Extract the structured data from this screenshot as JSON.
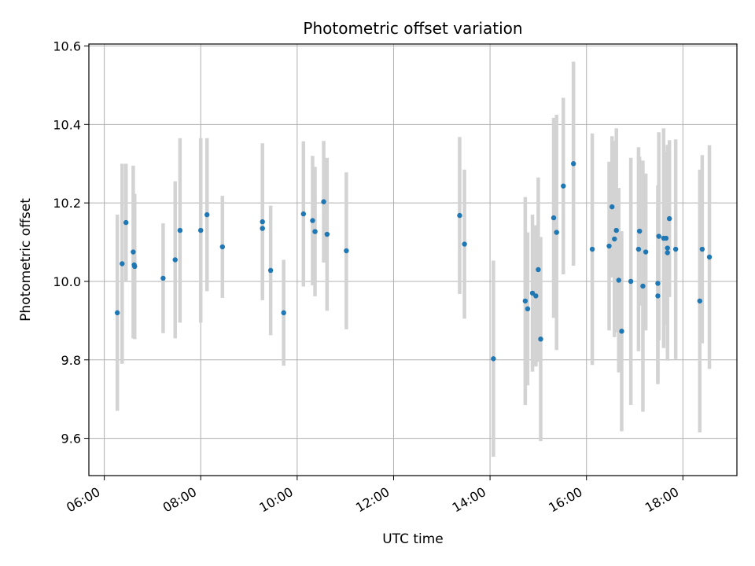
{
  "chart_data": {
    "type": "scatter",
    "title": "Photometric offset variation",
    "xlabel": "UTC time",
    "ylabel": "Photometric offset",
    "x_unit": "hours UTC",
    "xlim": [
      5.68,
      19.12
    ],
    "ylim": [
      9.505,
      10.605
    ],
    "x_ticks": [
      6,
      8,
      10,
      12,
      14,
      16,
      18
    ],
    "x_tick_labels": [
      "06:00",
      "08:00",
      "10:00",
      "12:00",
      "14:00",
      "16:00",
      "18:00"
    ],
    "y_ticks": [
      9.6,
      9.8,
      10.0,
      10.2,
      10.4,
      10.6
    ],
    "y_tick_labels": [
      "9.6",
      "9.8",
      "10.0",
      "10.2",
      "10.4",
      "10.6"
    ],
    "grid": true,
    "errorbar_color": "#d3d3d3",
    "marker_color": "#1f77b4",
    "series": [
      {
        "x": [
          6.27,
          6.37,
          6.45,
          6.6,
          6.63,
          6.62,
          7.22,
          7.47,
          7.57,
          8.0,
          8.13,
          8.45,
          9.28,
          9.28,
          9.45,
          9.72,
          10.13,
          10.32,
          10.37,
          10.55,
          10.62,
          11.02,
          13.37,
          13.47,
          14.07,
          14.73,
          14.78,
          14.88,
          14.95,
          15.0,
          15.05,
          15.32,
          15.38,
          15.52,
          15.73,
          16.12,
          16.47,
          16.53,
          16.58,
          16.62,
          16.67,
          16.73,
          16.92,
          17.08,
          17.1,
          17.17,
          17.23,
          17.48,
          17.48,
          17.5,
          17.6,
          17.65,
          17.68,
          17.68,
          17.72,
          17.85,
          18.35,
          18.4,
          18.55
        ],
        "y": [
          9.92,
          10.045,
          10.15,
          10.075,
          10.038,
          10.042,
          10.008,
          10.055,
          10.13,
          10.13,
          10.17,
          10.088,
          10.152,
          10.135,
          10.028,
          9.92,
          10.172,
          10.155,
          10.127,
          10.203,
          10.12,
          10.078,
          10.168,
          10.095,
          9.803,
          9.95,
          9.93,
          9.97,
          9.963,
          10.03,
          9.853,
          10.162,
          10.125,
          10.243,
          10.3,
          10.082,
          10.09,
          10.19,
          10.108,
          10.13,
          10.003,
          9.873,
          10.0,
          10.082,
          10.128,
          9.988,
          10.075,
          9.995,
          9.963,
          10.115,
          10.11,
          10.11,
          10.085,
          10.073,
          10.16,
          10.082,
          9.95,
          10.082,
          10.062
        ],
        "yerr": [
          0.25,
          0.255,
          0.15,
          0.22,
          0.185,
          0.13,
          0.14,
          0.2,
          0.235,
          0.235,
          0.195,
          0.13,
          0.2,
          0.16,
          0.165,
          0.135,
          0.185,
          0.165,
          0.165,
          0.155,
          0.195,
          0.2,
          0.2,
          0.19,
          0.25,
          0.265,
          0.195,
          0.2,
          0.18,
          0.235,
          0.26,
          0.255,
          0.3,
          0.225,
          0.26,
          0.295,
          0.215,
          0.18,
          0.25,
          0.26,
          0.235,
          0.255,
          0.315,
          0.26,
          0.19,
          0.32,
          0.2,
          0.25,
          0.225,
          0.265,
          0.28,
          0.22,
          0.25,
          0.275,
          0.2,
          0.28,
          0.335,
          0.24,
          0.285
        ]
      }
    ]
  }
}
